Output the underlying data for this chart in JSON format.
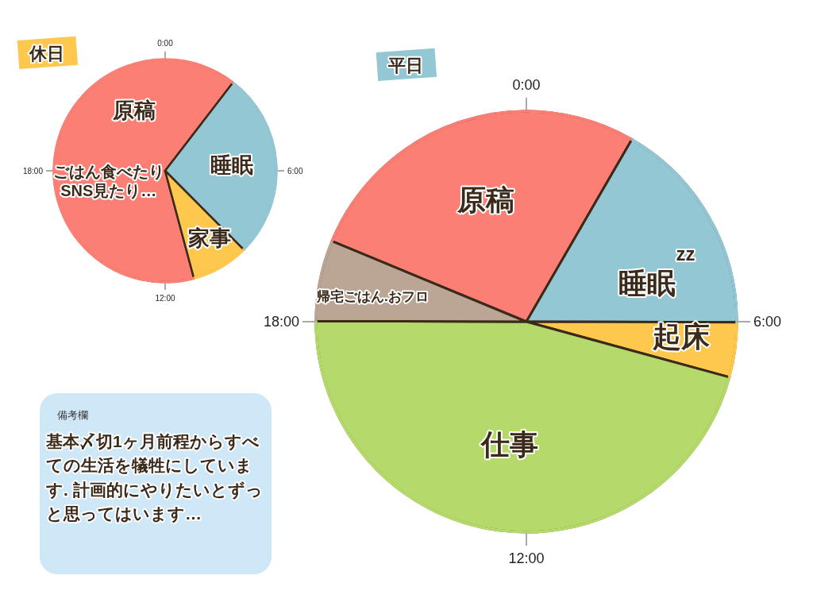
{
  "chart_data": [
    {
      "type": "pie",
      "title": "休日",
      "categories": [
        "原稿",
        "睡眠",
        "家事"
      ],
      "values": [
        64.6,
        27.1,
        8.3
      ],
      "colors": [
        "#fb7f74",
        "#93c7d3",
        "#fec84f"
      ],
      "annotations": [
        "0:00",
        "6:00",
        "12:00",
        "18:00",
        {
          "text": "ごはん食べたりSNS見たり…",
          "x": "原稿"
        }
      ]
    },
    {
      "type": "pie",
      "title": "平日",
      "categories": [
        "原稿",
        "睡眠",
        "起床",
        "仕事",
        "帰宅ごはん.おフロ"
      ],
      "values": [
        27.1,
        16.7,
        4.2,
        45.8,
        6.2
      ],
      "colors": [
        "#fb7f74",
        "#93c7d3",
        "#fec84f",
        "#b5d96b",
        "#bba696"
      ],
      "annotations": [
        "0:00",
        "6:00",
        "12:00",
        "18:00",
        {
          "text": "zz",
          "x": "睡眠"
        }
      ]
    },
    {
      "type": "other",
      "title": "備考欄",
      "annotations": [
        "基本〆切1ヶ月前程からすべての生活を犠牲にしています. 計画的にやりたいとずっと思ってはいます…"
      ]
    }
  ]
}
